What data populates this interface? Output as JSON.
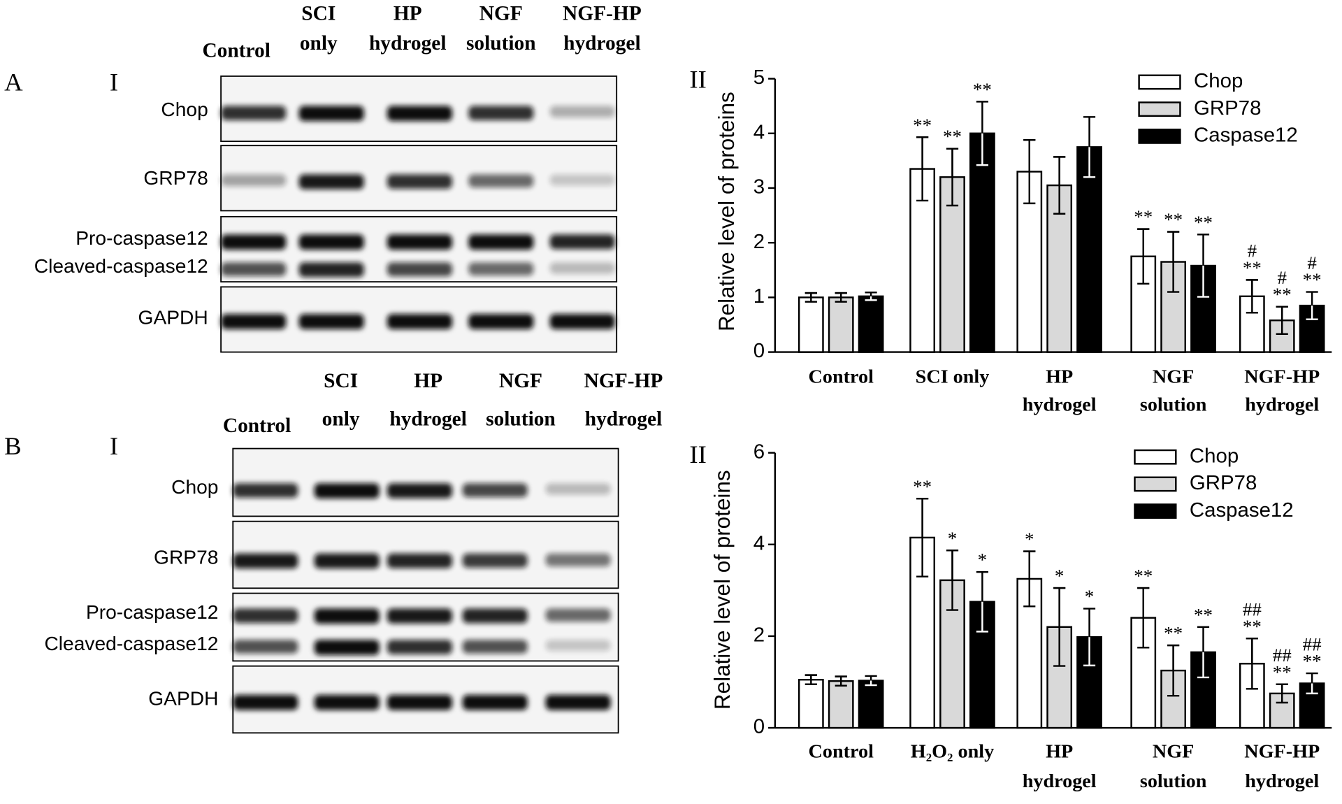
{
  "blots": [
    {
      "label": "A",
      "sub": "I",
      "lanes": [
        [
          "Control"
        ],
        [
          "SCI",
          "only"
        ],
        [
          "HP",
          "hydrogel"
        ],
        [
          "NGF",
          "solution"
        ],
        [
          "NGF-HP",
          "hydrogel"
        ]
      ],
      "rows": [
        "Chop",
        "GRP78",
        "Pro-caspase12",
        "Cleaved-caspase12",
        "GAPDH"
      ]
    },
    {
      "label": "B",
      "sub": "I",
      "lanes": [
        [
          "Control"
        ],
        [
          "SCI",
          "only"
        ],
        [
          "HP",
          "hydrogel"
        ],
        [
          "NGF",
          "solution"
        ],
        [
          "NGF-HP",
          "hydrogel"
        ]
      ],
      "rows": [
        "Chop",
        "GRP78",
        "Pro-caspase12",
        "Cleaved-caspase12",
        "GAPDH"
      ]
    }
  ],
  "chart_data": [
    {
      "type": "bar",
      "panel": "II",
      "y_label": "Relative level of proteins",
      "categories": [
        [
          "Control"
        ],
        [
          "SCI only"
        ],
        [
          "HP",
          "hydrogel"
        ],
        [
          "NGF",
          "solution"
        ],
        [
          "NGF-HP",
          "hydrogel"
        ]
      ],
      "ylim": [
        0,
        5
      ],
      "yticks": [
        0,
        1,
        2,
        3,
        4,
        5
      ],
      "series": [
        {
          "name": "Chop",
          "color": "#ffffff",
          "values": [
            1.0,
            3.35,
            3.3,
            1.75,
            1.02
          ],
          "errors": [
            0.08,
            0.58,
            0.58,
            0.5,
            0.3
          ],
          "annotations": [
            null,
            [
              "**"
            ],
            null,
            [
              "**"
            ],
            [
              "#",
              "**"
            ]
          ]
        },
        {
          "name": "GRP78",
          "color": "#d9d9d9",
          "values": [
            1.0,
            3.2,
            3.05,
            1.65,
            0.58
          ],
          "errors": [
            0.08,
            0.52,
            0.52,
            0.55,
            0.25
          ],
          "annotations": [
            null,
            [
              "**"
            ],
            null,
            [
              "**"
            ],
            [
              "#",
              "**"
            ]
          ]
        },
        {
          "name": "Caspase12",
          "color": "#000000",
          "values": [
            1.02,
            4.0,
            3.75,
            1.58,
            0.85
          ],
          "errors": [
            0.07,
            0.58,
            0.55,
            0.57,
            0.25
          ],
          "annotations": [
            null,
            [
              "**"
            ],
            null,
            [
              "**"
            ],
            [
              "#",
              "**"
            ]
          ]
        }
      ]
    },
    {
      "type": "bar",
      "panel": "II",
      "y_label": "Relative level of proteins",
      "categories": [
        [
          "Control"
        ],
        [
          "H₂O₂ only"
        ],
        [
          "HP",
          "hydrogel"
        ],
        [
          "NGF",
          "solution"
        ],
        [
          "NGF-HP",
          "hydrogel"
        ]
      ],
      "ylim": [
        0,
        6
      ],
      "yticks": [
        0,
        2,
        4,
        6
      ],
      "series": [
        {
          "name": "Chop",
          "color": "#ffffff",
          "values": [
            1.05,
            4.15,
            3.25,
            2.4,
            1.4
          ],
          "errors": [
            0.1,
            0.85,
            0.6,
            0.65,
            0.55
          ],
          "annotations": [
            null,
            [
              "**"
            ],
            [
              "*"
            ],
            [
              "**"
            ],
            [
              "##",
              "**"
            ]
          ]
        },
        {
          "name": "GRP78",
          "color": "#d9d9d9",
          "values": [
            1.02,
            3.22,
            2.2,
            1.25,
            0.75
          ],
          "errors": [
            0.1,
            0.65,
            0.85,
            0.55,
            0.2
          ],
          "annotations": [
            null,
            [
              "*"
            ],
            [
              "*"
            ],
            [
              "**"
            ],
            [
              "##",
              "**"
            ]
          ]
        },
        {
          "name": "Caspase12",
          "color": "#000000",
          "values": [
            1.03,
            2.75,
            1.98,
            1.65,
            0.97
          ],
          "errors": [
            0.1,
            0.65,
            0.62,
            0.55,
            0.22
          ],
          "annotations": [
            null,
            [
              "*"
            ],
            [
              "*"
            ],
            [
              "**"
            ],
            [
              "##",
              "**"
            ]
          ]
        }
      ]
    }
  ]
}
